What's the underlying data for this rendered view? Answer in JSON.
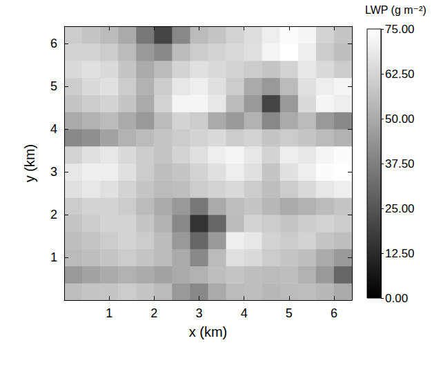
{
  "chart_data": {
    "type": "heatmap",
    "xlabel": "x (km)",
    "ylabel": "y (km)",
    "x": [
      0.2,
      0.6,
      1.0,
      1.4,
      1.8,
      2.2,
      2.6,
      3.0,
      3.4,
      3.8,
      4.2,
      4.6,
      5.0,
      5.4,
      5.8,
      6.2
    ],
    "y": [
      0.2,
      0.6,
      1.0,
      1.4,
      1.8,
      2.2,
      2.6,
      3.0,
      3.4,
      3.8,
      4.2,
      4.6,
      5.0,
      5.4,
      5.8,
      6.2
    ],
    "z": [
      [
        56,
        58,
        58,
        60,
        58,
        55,
        45,
        40,
        50,
        55,
        56,
        54,
        55,
        56,
        54,
        50
      ],
      [
        45,
        48,
        50,
        52,
        50,
        48,
        50,
        52,
        56,
        58,
        56,
        55,
        56,
        52,
        45,
        30
      ],
      [
        55,
        56,
        58,
        60,
        58,
        55,
        50,
        40,
        55,
        66,
        64,
        60,
        58,
        56,
        50,
        45
      ],
      [
        56,
        58,
        60,
        62,
        60,
        55,
        45,
        30,
        45,
        70,
        68,
        62,
        60,
        62,
        58,
        56
      ],
      [
        58,
        60,
        62,
        62,
        58,
        52,
        40,
        15,
        30,
        55,
        62,
        60,
        58,
        60,
        62,
        60
      ],
      [
        60,
        62,
        62,
        60,
        55,
        50,
        45,
        35,
        50,
        56,
        58,
        54,
        50,
        52,
        55,
        58
      ],
      [
        66,
        68,
        66,
        62,
        58,
        55,
        56,
        60,
        62,
        64,
        60,
        56,
        60,
        64,
        68,
        70
      ],
      [
        68,
        70,
        70,
        66,
        60,
        56,
        58,
        62,
        66,
        70,
        66,
        58,
        66,
        70,
        74,
        75
      ],
      [
        62,
        66,
        68,
        64,
        60,
        58,
        62,
        66,
        70,
        72,
        68,
        62,
        70,
        68,
        72,
        74
      ],
      [
        40,
        42,
        48,
        52,
        55,
        58,
        60,
        62,
        64,
        60,
        62,
        58,
        60,
        58,
        55,
        52
      ],
      [
        50,
        52,
        55,
        50,
        45,
        55,
        62,
        60,
        50,
        45,
        52,
        40,
        50,
        55,
        45,
        40
      ],
      [
        58,
        60,
        62,
        58,
        50,
        62,
        72,
        72,
        68,
        55,
        45,
        20,
        45,
        64,
        72,
        70
      ],
      [
        60,
        64,
        66,
        60,
        52,
        60,
        68,
        70,
        66,
        60,
        50,
        45,
        55,
        66,
        70,
        72
      ],
      [
        64,
        66,
        64,
        58,
        50,
        55,
        62,
        66,
        64,
        62,
        60,
        58,
        62,
        68,
        64,
        60
      ],
      [
        62,
        62,
        60,
        55,
        45,
        40,
        55,
        60,
        62,
        64,
        66,
        72,
        75,
        70,
        60,
        56
      ],
      [
        60,
        58,
        55,
        50,
        35,
        20,
        40,
        55,
        58,
        62,
        65,
        70,
        74,
        72,
        62,
        58
      ]
    ],
    "xlim": [
      0,
      6.4
    ],
    "ylim": [
      0,
      6.4
    ],
    "xticks": [
      1,
      2,
      3,
      4,
      5,
      6
    ],
    "yticks": [
      1,
      2,
      3,
      4,
      5,
      6
    ],
    "colorbar": {
      "title": "LWP (g m⁻²)",
      "range": [
        0,
        75
      ],
      "ticks": [
        {
          "value": 0,
          "label": "0.00"
        },
        {
          "value": 12.5,
          "label": "12.50"
        },
        {
          "value": 25,
          "label": "25.00"
        },
        {
          "value": 37.5,
          "label": "37.50"
        },
        {
          "value": 50,
          "label": "50.00"
        },
        {
          "value": 62.5,
          "label": "62.50"
        },
        {
          "value": 75,
          "label": "75.00"
        }
      ]
    }
  }
}
